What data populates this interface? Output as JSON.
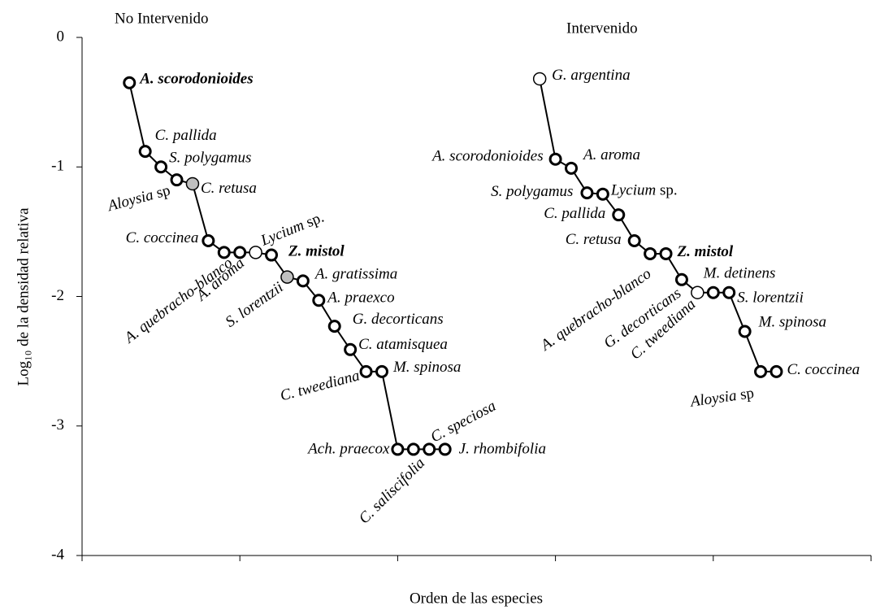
{
  "chart_data": {
    "type": "line",
    "x_label": "Orden de las especies",
    "y_label": "Log₁₀ de la densidad relativa",
    "xlim": [
      0,
      50
    ],
    "xticks": [
      0,
      10,
      20,
      30,
      40,
      50
    ],
    "ylim": [
      -4,
      0
    ],
    "yticks": [
      -4,
      -3,
      -2,
      -1,
      0
    ],
    "line_color": "#000000",
    "series": [
      {
        "name": "No Intervenido",
        "x": [
          3,
          4,
          5,
          6,
          7,
          8,
          9,
          10,
          11,
          12,
          13,
          14,
          15,
          16,
          17,
          18,
          19,
          20,
          21,
          22,
          23
        ],
        "values": [
          -0.35,
          -0.88,
          -1.0,
          -1.1,
          -1.13,
          -1.57,
          -1.66,
          -1.66,
          -1.66,
          -1.68,
          -1.85,
          -1.88,
          -2.03,
          -2.23,
          -2.41,
          -2.58,
          -2.58,
          -3.18,
          -3.18,
          -3.18,
          -3.18
        ],
        "labels": [
          "A. scorodonioides",
          "C. pallida",
          "S. polygamus",
          "Aloysia sp",
          "C. retusa",
          "C. coccinea",
          "A. quebracho-blanco",
          "A. aroma",
          "Lycium sp.",
          "Z. mistol",
          "S. lorentzii",
          "A. gratissima",
          "A. praexco",
          "G. decorticans",
          "C. atamisquea",
          "C. tweediana",
          "M. spinosa",
          "Ach. praecox",
          "C. saliscifolia",
          "C. speciosa",
          "J. rhombifolia"
        ],
        "marker_fills": [
          "#ffffff",
          "#ffffff",
          "#ffffff",
          "#ffffff",
          "#bfbfbf",
          "#ffffff",
          "#ffffff",
          "#ffffff",
          "#ffffff",
          "#ffffff",
          "#bfbfbf",
          "#ffffff",
          "#ffffff",
          "#ffffff",
          "#ffffff",
          "#ffffff",
          "#ffffff",
          "#ffffff",
          "#ffffff",
          "#ffffff",
          "#ffffff"
        ]
      },
      {
        "name": "Intervenido",
        "x": [
          29,
          30,
          31,
          32,
          33,
          34,
          35,
          36,
          37,
          38,
          39,
          40,
          41,
          42,
          43,
          44
        ],
        "values": [
          -0.32,
          -0.94,
          -1.01,
          -1.2,
          -1.21,
          -1.37,
          -1.57,
          -1.67,
          -1.67,
          -1.87,
          -1.97,
          -1.97,
          -1.97,
          -2.27,
          -2.58,
          -2.58
        ],
        "labels": [
          "G. argentina",
          "A. scorodonioides",
          "A. aroma",
          "S. polygamus",
          "Lycium sp.",
          "C. pallida",
          "C. retusa",
          "A. quebracho-blanco",
          "Z. mistol",
          "G. decorticans",
          "C. tweediana",
          "M. detinens",
          "S. lorentzii",
          "M. spinosa",
          "Aloysia sp",
          "C. coccinea"
        ],
        "marker_fills": [
          "#ffffff",
          "#ffffff",
          "#ffffff",
          "#ffffff",
          "#ffffff",
          "#ffffff",
          "#ffffff",
          "#ffffff",
          "#ffffff",
          "#ffffff",
          "#ffffff",
          "#ffffff",
          "#ffffff",
          "#ffffff",
          "#ffffff",
          "#ffffff"
        ]
      }
    ]
  }
}
